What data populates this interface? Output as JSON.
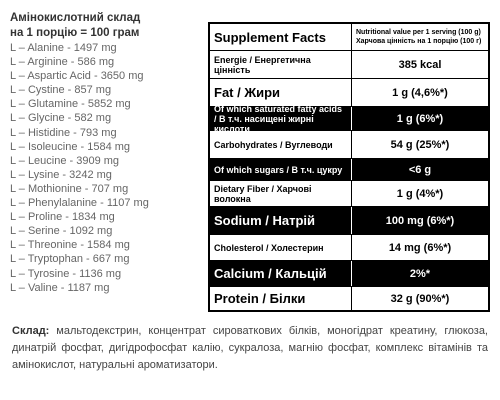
{
  "amino": {
    "title": "Амінокислотний склад",
    "subtitle": "на 1 порцію = 100 грам",
    "items": [
      "L – Alanine - 1497 mg",
      "L – Arginine - 586 mg",
      "L – Aspartic Acid - 3650 mg",
      "L – Cystine - 857 mg",
      "L – Glutamine - 5852 mg",
      "L – Glycine - 582 mg",
      "L – Histidine - 793 mg",
      "L – Isoleucine - 1584 mg",
      "L – Leucine - 3909 mg",
      "L – Lysine - 3242 mg",
      "L – Mothionine - 707 mg",
      "L – Phenylalanine - 1107 mg",
      "L – Proline - 1834 mg",
      "L – Serine - 1092 mg",
      "L – Threonine - 1584 mg",
      "L – Tryptophan - 667 mg",
      "L – Tyrosine - 1136 mg",
      "L – Valine - 1187 mg"
    ]
  },
  "facts": {
    "title": "Supplement Facts",
    "serving": "Nutritional value per 1 serving (100 g)",
    "serving_ua": "Харчова цінність на 1 порцію (100 г)",
    "rows": [
      {
        "label": "Energie / Енергетична цінність",
        "value": "385 kcal"
      },
      {
        "label": "Fat / Жири",
        "value": "1 g (4,6%*)"
      },
      {
        "label": "Of which saturated fatty acids / В т.ч. насищені жирні кислоти",
        "value": "1 g (6%*)"
      },
      {
        "label": "Carbohydrates / Вуглеводи",
        "value": "54 g (25%*)"
      },
      {
        "label": "Of which sugars / В т.ч. цукру",
        "value": "<6 g"
      },
      {
        "label": "Dietary Fiber / Харчові волокна",
        "value": "1 g (4%*)"
      },
      {
        "label": "Sodium / Натрій",
        "value": "100 mg (6%*)"
      },
      {
        "label": "Cholesterol / Холестерин",
        "value": "14 mg (6%*)"
      },
      {
        "label": "Calcium / Кальцій",
        "value": "2%*"
      },
      {
        "label": "Protein / Білки",
        "value": "32 g (90%*)"
      }
    ]
  },
  "composition": {
    "label": "Склад:",
    "text": "мальтодекстрин, концентрат сироваткових білків, моногідрат креатину, глюкоза, динатрій фосфат, дигідрофосфат калію, сукралоза, магнію фосфат, комплекс вітамінів та амінокислот, натуральні ароматизатори."
  }
}
